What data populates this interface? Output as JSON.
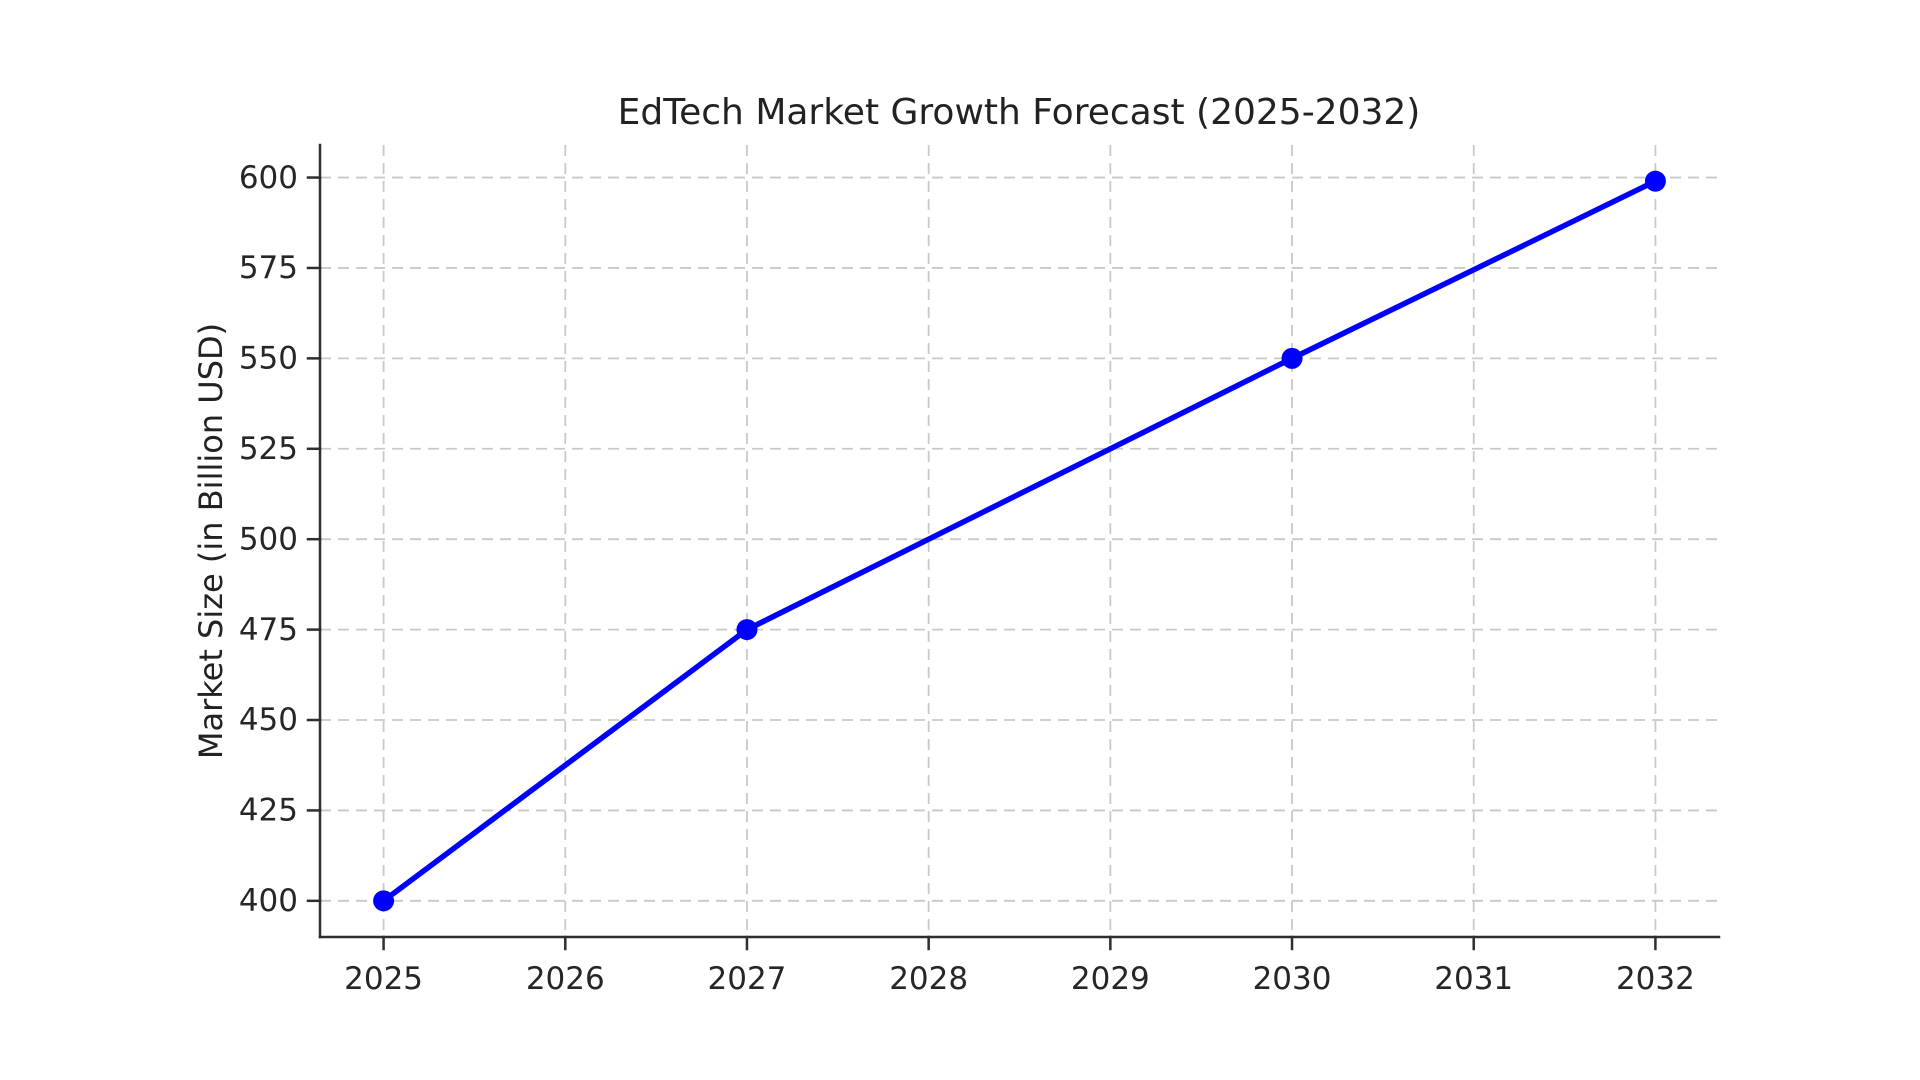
{
  "chart_data": {
    "type": "line",
    "title": "EdTech Market Growth Forecast (2025-2032)",
    "xlabel": "",
    "ylabel": "Market Size (in Billion USD)",
    "series": [
      {
        "name": "Market Size",
        "x": [
          2025,
          2027,
          2030,
          2032
        ],
        "values": [
          400,
          475,
          550,
          599
        ]
      }
    ],
    "xticks": [
      2025,
      2026,
      2027,
      2028,
      2029,
      2030,
      2031,
      2032
    ],
    "yticks": [
      400,
      425,
      450,
      475,
      500,
      525,
      550,
      575,
      600
    ],
    "xlim": [
      2024.65,
      2032.35
    ],
    "ylim": [
      390,
      609
    ],
    "grid": true,
    "grid_line_style": "dashed",
    "legend": false,
    "marker": "circle",
    "colors": {
      "line": "#0000ff",
      "marker": "#0000ff",
      "grid": "#c9c9c9",
      "spine": "#2e2e2e",
      "text": "#222222",
      "background": "#ffffff"
    }
  }
}
